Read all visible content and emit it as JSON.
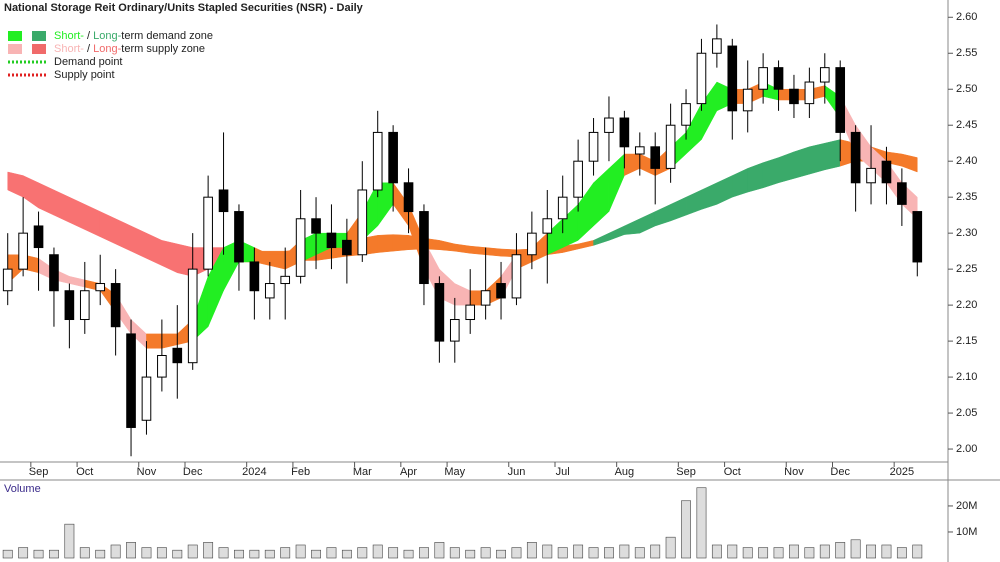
{
  "chart_data": {
    "type": "candlestick",
    "title": "National Storage Reit Ordinary/Units Stapled Securities (NSR) - Daily",
    "volume_title": "Volume",
    "legend": [
      {
        "short": "Short-",
        "separator": " / ",
        "long": "Long-",
        "rest": "term demand zone",
        "colors": [
          "#22ee22",
          "#3aaa6a"
        ]
      },
      {
        "short": "Short-",
        "separator": " / ",
        "long": "Long-",
        "rest": "term supply zone",
        "colors": [
          "#f8b4b4",
          "#f06a6a"
        ]
      },
      {
        "text": "Demand point",
        "color": "#22cc22"
      },
      {
        "text": "Supply point",
        "color": "#e02020"
      }
    ],
    "categories": [
      null,
      null,
      "Sep",
      null,
      null,
      "Oct",
      null,
      null,
      null,
      "Nov",
      null,
      null,
      "Dec",
      null,
      null,
      null,
      "2024",
      null,
      null,
      "Feb",
      null,
      null,
      null,
      "Mar",
      null,
      null,
      "Apr",
      null,
      null,
      "May",
      null,
      null,
      null,
      "Jun",
      null,
      null,
      "Jul",
      null,
      null,
      null,
      "Aug",
      null,
      null,
      null,
      "Sep",
      null,
      null,
      "Oct",
      null,
      null,
      null,
      "Nov",
      null,
      null,
      "Dec",
      null,
      null,
      null,
      "2025",
      null
    ],
    "open": [
      2.22,
      2.25,
      2.31,
      2.27,
      2.22,
      2.18,
      2.22,
      2.23,
      2.16,
      2.04,
      2.1,
      2.14,
      2.12,
      2.25,
      2.36,
      2.33,
      2.26,
      2.21,
      2.23,
      2.24,
      2.32,
      2.3,
      2.29,
      2.27,
      2.36,
      2.44,
      2.37,
      2.33,
      2.23,
      2.15,
      2.18,
      2.2,
      2.23,
      2.21,
      2.27,
      2.3,
      2.32,
      2.35,
      2.4,
      2.44,
      2.46,
      2.41,
      2.42,
      2.39,
      2.45,
      2.48,
      2.55,
      2.56,
      2.47,
      2.5,
      2.53,
      2.5,
      2.48,
      2.51,
      2.53,
      2.44,
      2.37,
      2.4,
      2.37,
      2.33
    ],
    "high": [
      2.3,
      2.35,
      2.33,
      2.28,
      2.23,
      2.26,
      2.27,
      2.25,
      2.18,
      2.15,
      2.18,
      2.2,
      2.3,
      2.38,
      2.44,
      2.34,
      2.28,
      2.26,
      2.28,
      2.36,
      2.35,
      2.34,
      2.32,
      2.4,
      2.47,
      2.45,
      2.39,
      2.34,
      2.24,
      2.21,
      2.25,
      2.28,
      2.26,
      2.3,
      2.33,
      2.36,
      2.38,
      2.43,
      2.46,
      2.49,
      2.47,
      2.44,
      2.44,
      2.48,
      2.5,
      2.57,
      2.59,
      2.57,
      2.54,
      2.55,
      2.54,
      2.52,
      2.53,
      2.55,
      2.54,
      2.45,
      2.45,
      2.42,
      2.39,
      2.33
    ],
    "low": [
      2.2,
      2.24,
      2.22,
      2.17,
      2.14,
      2.16,
      2.2,
      2.13,
      1.99,
      2.02,
      2.08,
      2.07,
      2.11,
      2.24,
      2.27,
      2.22,
      2.18,
      2.18,
      2.18,
      2.23,
      2.25,
      2.25,
      2.23,
      2.26,
      2.35,
      2.33,
      2.3,
      2.2,
      2.12,
      2.12,
      2.16,
      2.18,
      2.18,
      2.2,
      2.25,
      2.23,
      2.3,
      2.33,
      2.38,
      2.4,
      2.39,
      2.38,
      2.34,
      2.37,
      2.43,
      2.47,
      2.53,
      2.43,
      2.44,
      2.48,
      2.47,
      2.46,
      2.46,
      2.48,
      2.4,
      2.33,
      2.34,
      2.34,
      2.31,
      2.24
    ],
    "close": [
      2.25,
      2.3,
      2.28,
      2.22,
      2.18,
      2.22,
      2.23,
      2.17,
      2.03,
      2.1,
      2.13,
      2.12,
      2.25,
      2.35,
      2.33,
      2.26,
      2.22,
      2.23,
      2.24,
      2.32,
      2.3,
      2.28,
      2.27,
      2.36,
      2.44,
      2.37,
      2.33,
      2.23,
      2.15,
      2.18,
      2.2,
      2.22,
      2.21,
      2.27,
      2.3,
      2.32,
      2.35,
      2.4,
      2.44,
      2.46,
      2.42,
      2.42,
      2.39,
      2.45,
      2.48,
      2.55,
      2.57,
      2.47,
      2.5,
      2.53,
      2.5,
      2.48,
      2.51,
      2.53,
      2.44,
      2.37,
      2.39,
      2.37,
      2.34,
      2.26
    ],
    "zones": [
      {
        "upper": [
          2.385,
          2.38,
          2.37,
          2.36,
          2.35,
          2.34,
          2.33,
          2.32,
          2.31,
          2.3,
          2.29,
          2.285,
          2.28,
          2.28,
          2.28,
          2.28,
          2.275,
          2.275,
          2.275,
          2.277,
          2.28,
          2.285,
          2.29,
          2.293,
          2.297,
          2.298,
          2.297,
          2.293,
          2.29,
          2.285,
          2.282,
          2.28,
          2.278,
          2.277,
          2.278,
          2.28,
          2.282,
          2.285,
          2.29,
          2.3,
          2.31,
          2.32,
          2.33,
          2.34,
          2.35,
          2.36,
          2.37,
          2.38,
          2.39,
          2.398,
          2.405,
          2.413,
          2.42,
          2.425,
          2.43,
          2.425,
          2.42,
          2.413,
          2.41,
          2.405
        ],
        "lower": [
          2.36,
          2.35,
          2.335,
          2.325,
          2.315,
          2.305,
          2.295,
          2.285,
          2.275,
          2.265,
          2.255,
          2.245,
          2.24,
          2.25,
          2.255,
          2.26,
          2.26,
          2.262,
          2.262,
          2.262,
          2.262,
          2.265,
          2.268,
          2.27,
          2.273,
          2.275,
          2.277,
          2.278,
          2.277,
          2.275,
          2.272,
          2.27,
          2.268,
          2.267,
          2.268,
          2.27,
          2.273,
          2.278,
          2.283,
          2.29,
          2.298,
          2.3,
          2.31,
          2.317,
          2.325,
          2.333,
          2.34,
          2.35,
          2.357,
          2.363,
          2.37,
          2.376,
          2.382,
          2.388,
          2.393,
          2.4,
          2.4,
          2.398,
          2.393,
          2.385
        ],
        "colors": [
          "#f87272",
          "#f87272",
          "#f87272",
          "#f87272",
          "#f87272",
          "#f87272",
          "#f87272",
          "#f87272",
          "#f87272",
          "#f87272",
          "#f87272",
          "#f87272",
          "#f87272",
          "#f87272",
          "#f87272",
          "#f47a2a",
          "#f47a2a",
          "#f47a2a",
          "#f47a2a",
          "#f47a2a",
          "#f47a2a",
          "#f47a2a",
          "#f47a2a",
          "#f47a2a",
          "#f47a2a",
          "#f47a2a",
          "#f47a2a",
          "#f47a2a",
          "#f47a2a",
          "#f47a2a",
          "#f47a2a",
          "#f47a2a",
          "#f47a2a",
          "#f47a2a",
          "#f47a2a",
          "#f47a2a",
          "#f47a2a",
          "#f47a2a",
          "#3aaa6a",
          "#3aaa6a",
          "#3aaa6a",
          "#3aaa6a",
          "#3aaa6a",
          "#3aaa6a",
          "#3aaa6a",
          "#3aaa6a",
          "#3aaa6a",
          "#3aaa6a",
          "#3aaa6a",
          "#3aaa6a",
          "#3aaa6a",
          "#3aaa6a",
          "#3aaa6a",
          "#3aaa6a",
          "#f47a2a",
          "#f47a2a",
          "#f47a2a",
          "#f47a2a",
          "#f47a2a",
          "#f47a2a"
        ]
      },
      {
        "upper": [
          2.27,
          2.27,
          2.265,
          2.25,
          2.24,
          2.235,
          2.23,
          2.215,
          2.18,
          2.16,
          2.16,
          2.16,
          2.18,
          2.24,
          2.28,
          2.29,
          2.28,
          2.27,
          2.27,
          2.29,
          2.3,
          2.3,
          2.3,
          2.33,
          2.37,
          2.37,
          2.34,
          2.29,
          2.25,
          2.23,
          2.22,
          2.22,
          2.24,
          2.27,
          2.28,
          2.3,
          2.32,
          2.34,
          2.37,
          2.39,
          2.41,
          2.41,
          2.4,
          2.42,
          2.44,
          2.48,
          2.51,
          2.5,
          2.5,
          2.51,
          2.5,
          2.5,
          2.5,
          2.505,
          2.49,
          2.45,
          2.42,
          2.4,
          2.37,
          2.35
        ],
        "lower": [
          2.23,
          2.25,
          2.245,
          2.235,
          2.23,
          2.225,
          2.22,
          2.19,
          2.16,
          2.14,
          2.14,
          2.145,
          2.15,
          2.17,
          2.22,
          2.26,
          2.26,
          2.255,
          2.25,
          2.26,
          2.27,
          2.28,
          2.28,
          2.29,
          2.31,
          2.34,
          2.31,
          2.25,
          2.21,
          2.2,
          2.2,
          2.2,
          2.21,
          2.25,
          2.26,
          2.27,
          2.28,
          2.29,
          2.31,
          2.33,
          2.38,
          2.39,
          2.38,
          2.39,
          2.41,
          2.43,
          2.47,
          2.48,
          2.48,
          2.49,
          2.485,
          2.485,
          2.485,
          2.49,
          2.46,
          2.41,
          2.39,
          2.37,
          2.34,
          2.32
        ],
        "colors": [
          "#f47a2a",
          "#f47a2a",
          "#f8b4b4",
          "#f8b4b4",
          "#f8b4b4",
          "#f47a2a",
          "#f47a2a",
          "#f8b4b4",
          "#f8b4b4",
          "#f47a2a",
          "#f47a2a",
          "#f47a2a",
          "#22ee22",
          "#22ee22",
          "#22ee22",
          "#22ee22",
          "#f47a2a",
          "#f47a2a",
          "#f47a2a",
          "#22ee22",
          "#22ee22",
          "#22ee22",
          "#f47a2a",
          "#22ee22",
          "#22ee22",
          "#f47a2a",
          "#f47a2a",
          "#f8b4b4",
          "#f8b4b4",
          "#f8b4b4",
          "#f47a2a",
          "#f47a2a",
          "#f8b4b4",
          "#f47a2a",
          "#f47a2a",
          "#22ee22",
          "#22ee22",
          "#22ee22",
          "#22ee22",
          "#22ee22",
          "#f47a2a",
          "#f47a2a",
          "#f47a2a",
          "#22ee22",
          "#22ee22",
          "#22ee22",
          "#22ee22",
          "#f47a2a",
          "#f47a2a",
          "#22ee22",
          "#f47a2a",
          "#f47a2a",
          "#f47a2a",
          "#22ee22",
          "#f8b4b4",
          "#f8b4b4",
          "#f8b4b4",
          "#f8b4b4",
          "#f8b4b4",
          "#f8b4b4"
        ]
      }
    ],
    "ylim": [
      1.982,
      2.624
    ],
    "yticks": [
      {
        "value": 2.6,
        "label": "2.60"
      },
      2.55,
      {
        "value": 2.5,
        "label": "2.50"
      },
      2.45,
      {
        "value": 2.4,
        "label": "2.40"
      },
      2.35,
      {
        "value": 2.3,
        "label": "2.30"
      },
      2.25,
      {
        "value": 2.2,
        "label": "2.20"
      },
      2.15,
      {
        "value": 2.1,
        "label": "2.10"
      },
      2.05,
      {
        "value": 2.0,
        "label": "2.00"
      }
    ],
    "volume": [
      3000000,
      4000000,
      3000000,
      3000000,
      13000000,
      4000000,
      3000000,
      5000000,
      6000000,
      4000000,
      4000000,
      3000000,
      5000000,
      6000000,
      4000000,
      3000000,
      3000000,
      3000000,
      4000000,
      5000000,
      3000000,
      4000000,
      3000000,
      4000000,
      5000000,
      4000000,
      3000000,
      4000000,
      6000000,
      4000000,
      3000000,
      4000000,
      3000000,
      4000000,
      6000000,
      5000000,
      4000000,
      5000000,
      4000000,
      4000000,
      5000000,
      4000000,
      5000000,
      8000000,
      22000000,
      27000000,
      5000000,
      5000000,
      4000000,
      4000000,
      4000000,
      5000000,
      4000000,
      5000000,
      6000000,
      7000000,
      5000000,
      5000000,
      4000000,
      5000000
    ],
    "volume_ylim": [
      0,
      29200000
    ],
    "volume_yticks": [
      {
        "value": 20000000,
        "label": "20M"
      },
      {
        "value": 10000000,
        "label": "10M"
      }
    ]
  }
}
